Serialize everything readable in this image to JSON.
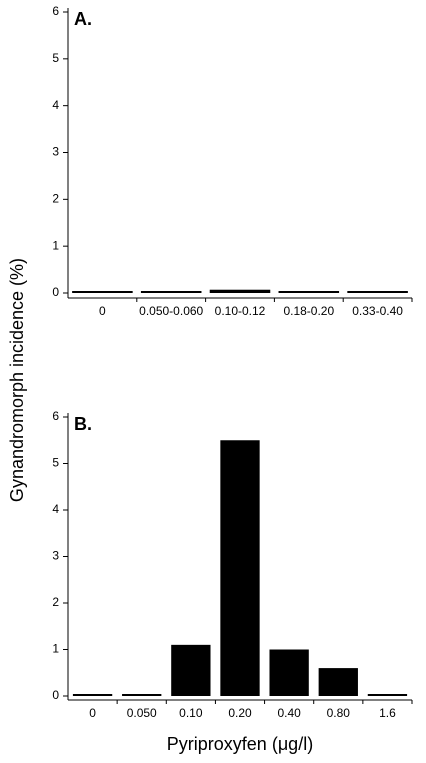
{
  "chart_data": [
    {
      "type": "bar",
      "annotation": "A.",
      "ylabel": "Gynandromorph incidence (%)",
      "categories": [
        "0",
        "0.050-0.060",
        "0.10-0.12",
        "0.18-0.20",
        "0.33-0.40"
      ],
      "values": [
        0,
        0,
        0.07,
        0,
        0
      ],
      "color": "#000000",
      "ylim": [
        0,
        6
      ],
      "yticks": [
        0,
        1,
        2,
        3,
        4,
        5,
        6
      ]
    },
    {
      "type": "bar",
      "annotation": "B.",
      "xlabel": "Pyriproxyfen (μg/l)",
      "categories": [
        "0",
        "0.050",
        "0.10",
        "0.20",
        "0.40",
        "0.80",
        "1.6"
      ],
      "values": [
        0,
        0,
        1.1,
        5.5,
        1.0,
        0.6,
        0
      ],
      "color": "#000000",
      "ylim": [
        0,
        6
      ],
      "yticks": [
        0,
        1,
        2,
        3,
        4,
        5,
        6
      ]
    }
  ]
}
